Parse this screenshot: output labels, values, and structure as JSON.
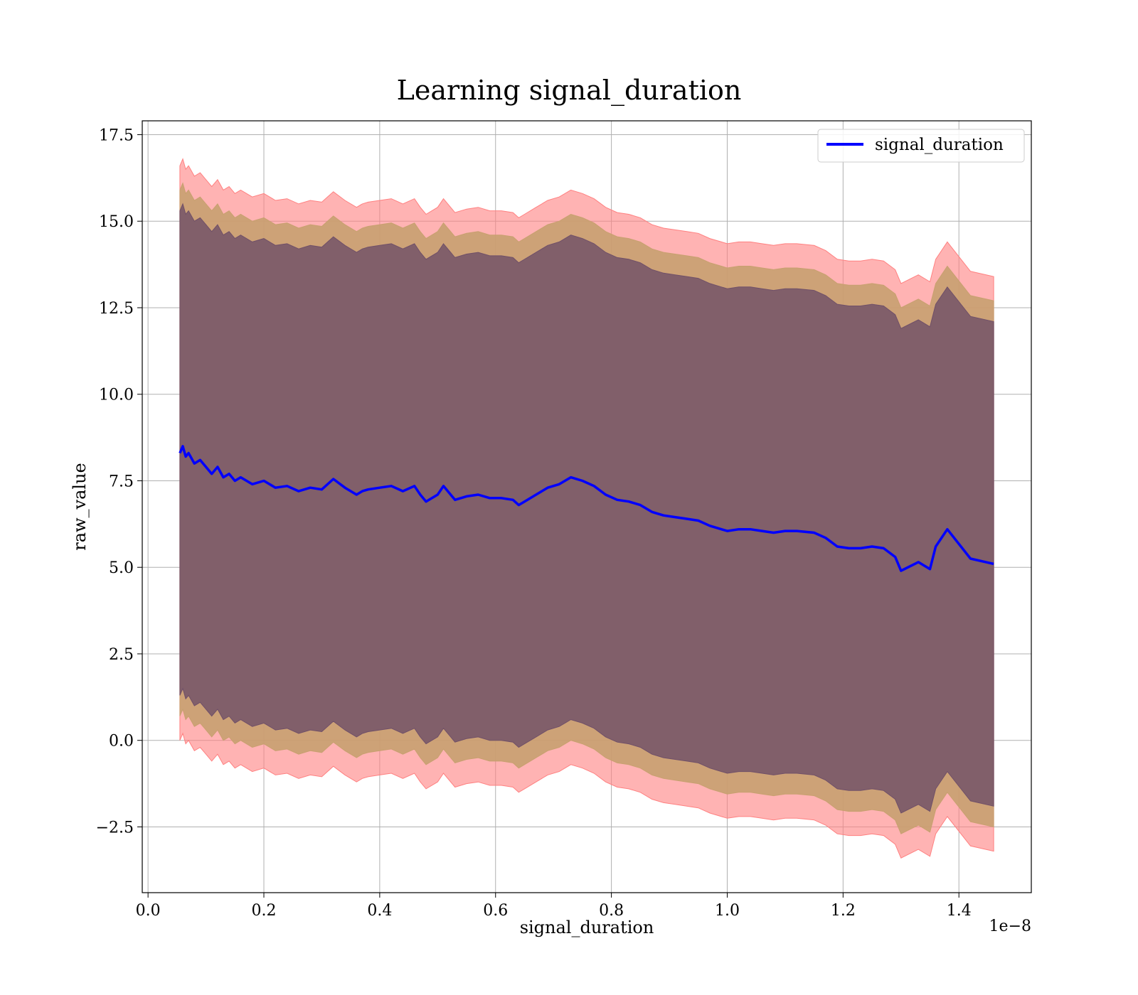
{
  "chart_data": {
    "type": "line",
    "title": "Learning signal_duration",
    "xlabel": "signal_duration",
    "ylabel": "raw_value",
    "x_offset_text": "1e−8",
    "xlim": [
      -0.01,
      1.525
    ],
    "ylim": [
      -4.4,
      17.9
    ],
    "x_ticks": [
      0.0,
      0.2,
      0.4,
      0.6,
      0.8,
      1.0,
      1.2,
      1.4
    ],
    "x_tick_labels": [
      "0.0",
      "0.2",
      "0.4",
      "0.6",
      "0.8",
      "1.0",
      "1.2",
      "1.4"
    ],
    "y_ticks": [
      -2.5,
      0.0,
      2.5,
      5.0,
      7.5,
      10.0,
      12.5,
      15.0,
      17.5
    ],
    "y_tick_labels": [
      "−2.5",
      "0.0",
      "2.5",
      "5.0",
      "7.5",
      "10.0",
      "12.5",
      "15.0",
      "17.5"
    ],
    "grid": true,
    "legend_position": "top-right",
    "colors": {
      "line": "#0000ff",
      "band_outer": "#ff8080",
      "band_middle": "#c8a070",
      "band_inner": "#705068"
    },
    "series": [
      {
        "name": "signal_duration",
        "x": [
          0.055,
          0.06,
          0.065,
          0.07,
          0.08,
          0.09,
          0.1,
          0.11,
          0.12,
          0.13,
          0.14,
          0.15,
          0.16,
          0.18,
          0.2,
          0.22,
          0.24,
          0.26,
          0.28,
          0.3,
          0.32,
          0.34,
          0.36,
          0.37,
          0.38,
          0.4,
          0.42,
          0.44,
          0.46,
          0.47,
          0.48,
          0.5,
          0.51,
          0.53,
          0.55,
          0.57,
          0.59,
          0.61,
          0.63,
          0.64,
          0.65,
          0.67,
          0.69,
          0.71,
          0.73,
          0.75,
          0.77,
          0.79,
          0.81,
          0.83,
          0.85,
          0.87,
          0.89,
          0.91,
          0.93,
          0.95,
          0.97,
          0.99,
          1.0,
          1.02,
          1.04,
          1.06,
          1.08,
          1.1,
          1.12,
          1.15,
          1.17,
          1.19,
          1.21,
          1.23,
          1.25,
          1.27,
          1.29,
          1.3,
          1.33,
          1.35,
          1.36,
          1.38,
          1.42,
          1.46
        ],
        "values": [
          8.3,
          8.5,
          8.2,
          8.3,
          8.0,
          8.1,
          7.9,
          7.7,
          7.9,
          7.6,
          7.7,
          7.5,
          7.6,
          7.4,
          7.5,
          7.3,
          7.35,
          7.2,
          7.3,
          7.25,
          7.55,
          7.3,
          7.1,
          7.2,
          7.25,
          7.3,
          7.35,
          7.2,
          7.35,
          7.1,
          6.9,
          7.1,
          7.35,
          6.95,
          7.05,
          7.1,
          7.0,
          7.0,
          6.95,
          6.8,
          6.9,
          7.1,
          7.3,
          7.4,
          7.6,
          7.5,
          7.35,
          7.1,
          6.95,
          6.9,
          6.8,
          6.6,
          6.5,
          6.45,
          6.4,
          6.35,
          6.2,
          6.1,
          6.05,
          6.1,
          6.1,
          6.05,
          6.0,
          6.05,
          6.05,
          6.0,
          5.85,
          5.6,
          5.55,
          5.55,
          5.6,
          5.55,
          5.3,
          4.9,
          5.15,
          4.95,
          5.6,
          6.1,
          5.25,
          5.1
        ]
      }
    ],
    "bands": [
      {
        "name": "outer",
        "lower_offset": -8.3,
        "upper_offset": 8.3
      },
      {
        "name": "middle",
        "lower_offset": -7.6,
        "upper_offset": 7.6
      },
      {
        "name": "inner",
        "lower_offset": -7.0,
        "upper_offset": 7.0
      }
    ]
  }
}
